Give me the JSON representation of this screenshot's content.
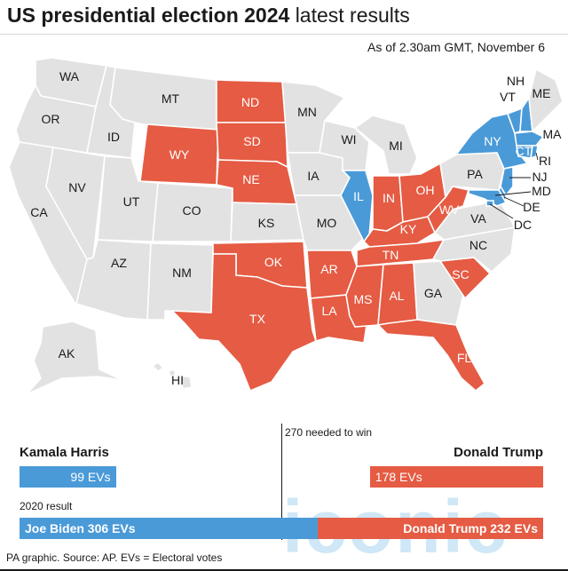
{
  "title": {
    "bold": "US presidential election 2024",
    "light": "latest results"
  },
  "as_of": "As of 2.30am GMT, November 6",
  "colors": {
    "republican": "#e55b43",
    "democrat": "#4a9ad8",
    "undeclared": "#e2e2e2"
  },
  "map": {
    "states": {
      "WA": "undeclared",
      "OR": "undeclared",
      "CA": "undeclared",
      "ID": "undeclared",
      "NV": "undeclared",
      "MT": "undeclared",
      "WY": "republican",
      "UT": "undeclared",
      "AZ": "undeclared",
      "CO": "undeclared",
      "NM": "undeclared",
      "ND": "republican",
      "SD": "republican",
      "NE": "republican",
      "KS": "undeclared",
      "OK": "republican",
      "TX": "republican",
      "MN": "undeclared",
      "IA": "undeclared",
      "MO": "undeclared",
      "AR": "republican",
      "LA": "republican",
      "WI": "undeclared",
      "IL": "democrat",
      "MI": "undeclared",
      "IN": "republican",
      "OH": "republican",
      "KY": "republican",
      "TN": "republican",
      "MS": "republican",
      "AL": "republican",
      "GA": "undeclared",
      "FL": "republican",
      "SC": "republican",
      "NC": "undeclared",
      "VA": "undeclared",
      "WV": "republican",
      "PA": "undeclared",
      "NY": "democrat",
      "VT": "democrat",
      "NH": "democrat",
      "ME": "undeclared",
      "MA": "democrat",
      "CT": "democrat",
      "RI": "democrat",
      "NJ": "democrat",
      "DE": "democrat",
      "MD": "democrat",
      "DC": "democrat",
      "AK": "undeclared",
      "HI": "undeclared"
    },
    "labels": {
      "WA": "WA",
      "OR": "OR",
      "CA": "CA",
      "ID": "ID",
      "NV": "NV",
      "MT": "MT",
      "WY": "WY",
      "UT": "UT",
      "AZ": "AZ",
      "CO": "CO",
      "NM": "NM",
      "ND": "ND",
      "SD": "SD",
      "NE": "NE",
      "KS": "KS",
      "OK": "OK",
      "TX": "TX",
      "MN": "MN",
      "IA": "IA",
      "MO": "MO",
      "AR": "AR",
      "LA": "LA",
      "WI": "WI",
      "IL": "IL",
      "MI": "MI",
      "IN": "IN",
      "OH": "OH",
      "KY": "KY",
      "TN": "TN",
      "MS": "MS",
      "AL": "AL",
      "GA": "GA",
      "FL": "FL",
      "SC": "SC",
      "NC": "NC",
      "VA": "VA",
      "WV": "WV",
      "PA": "PA",
      "NY": "NY",
      "VT": "VT",
      "NH": "NH",
      "ME": "ME",
      "MA": "MA",
      "CT": "CT",
      "RI": "RI",
      "NJ": "NJ",
      "DE": "DE",
      "MD": "MD",
      "DC": "DC",
      "AK": "AK",
      "HI": "HI"
    }
  },
  "threshold": {
    "text": "270 needed to win",
    "value": 270,
    "total": 538
  },
  "candidates": {
    "harris": {
      "name": "Kamala Harris",
      "bar_label": "99 EVs",
      "evs": 99
    },
    "trump": {
      "name": "Donald Trump",
      "bar_label": "178 EVs",
      "evs": 178
    }
  },
  "result_2020": {
    "heading": "2020 result",
    "biden": {
      "label": "Joe Biden 306 EVs",
      "evs": 306
    },
    "trump": {
      "label": "Donald Trump 232 EVs",
      "evs": 232
    }
  },
  "watermark": "iconic",
  "source": "PA graphic. Source: AP. EVs = Electoral votes"
}
